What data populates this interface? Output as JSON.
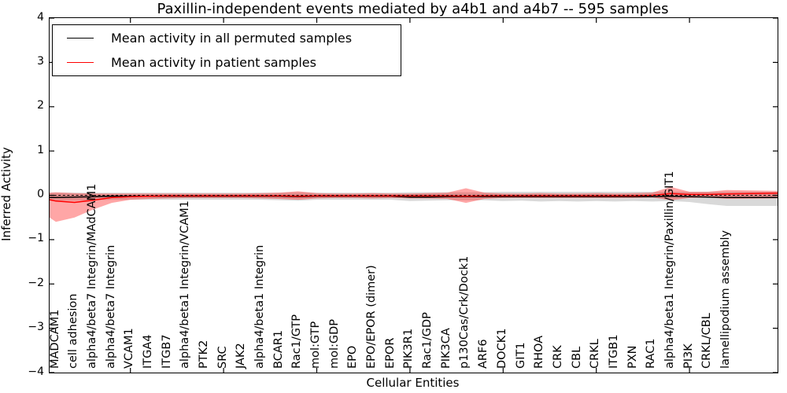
{
  "title": "Paxillin-independent events mediated by a4b1 and a4b7 -- 595 samples",
  "axes": {
    "x_label": "Cellular Entities",
    "y_label": "Inferred Activity",
    "y_tick_values": [
      4,
      3,
      2,
      1,
      0,
      -1,
      -2,
      -3,
      -4
    ],
    "y_tick_labels": [
      "4",
      "3",
      "2",
      "1",
      "0",
      "−1",
      "−2",
      "−3",
      "−4"
    ],
    "ylim": [
      -4,
      4
    ]
  },
  "legend": {
    "entries": [
      {
        "label": "Mean activity in all permuted samples",
        "color": "#000000"
      },
      {
        "label": "Mean activity in patient samples",
        "color": "#ff0000"
      }
    ],
    "position": "upper-left"
  },
  "chart_data": {
    "type": "line",
    "title": "Paxillin-independent events mediated by a4b1 and a4b7 -- 595 samples",
    "xlabel": "Cellular Entities",
    "ylabel": "Inferred Activity",
    "ylim": [
      -4,
      4
    ],
    "grid": false,
    "categories": [
      "MADCAM1",
      "cell adhesion",
      "alpha4/beta7 Integrin/MAdCAM1",
      "alpha4/beta7 Integrin",
      "VCAM1",
      "ITGA4",
      "ITGB7",
      "alpha4/beta1 Integrin/VCAM1",
      "PTK2",
      "SRC",
      "JAK2",
      "alpha4/beta1 Integrin",
      "BCAR1",
      "Rac1/GTP",
      "mol:GTP",
      "mol:GDP",
      "EPO",
      "EPO/EPOR (dimer)",
      "EPOR",
      "PIK3R1",
      "Rac1/GDP",
      "PIK3CA",
      "p130Cas/Crk/Dock1",
      "ARF6",
      "DOCK1",
      "GIT1",
      "RHOA",
      "CRK",
      "CBL",
      "CRKL",
      "ITGB1",
      "PXN",
      "RAC1",
      "alpha4/beta1 Integrin/Paxillin/GIT1",
      "PI3K",
      "CRKL/CBL",
      "lamellipodium assembly"
    ],
    "x_ticks_shown": [
      5,
      10,
      15,
      20,
      25,
      30,
      35
    ],
    "series": [
      {
        "name": "mean-permuted",
        "label": "Mean activity in all permuted samples",
        "color": "#000000",
        "left_edge": -0.05,
        "right_edge": -0.05,
        "values": [
          -0.05,
          -0.04,
          -0.03,
          -0.02,
          -0.02,
          -0.02,
          -0.02,
          -0.02,
          -0.02,
          -0.02,
          -0.02,
          -0.02,
          -0.02,
          -0.03,
          -0.02,
          -0.02,
          -0.02,
          -0.02,
          -0.02,
          -0.04,
          -0.04,
          -0.03,
          -0.03,
          -0.03,
          -0.03,
          -0.03,
          -0.03,
          -0.03,
          -0.03,
          -0.03,
          -0.03,
          -0.03,
          -0.03,
          -0.02,
          -0.03,
          -0.04,
          -0.05
        ]
      },
      {
        "name": "mean-patient",
        "label": "Mean activity in patient samples",
        "color": "#ff0000",
        "left_edge": -0.1,
        "right_edge": 0.05,
        "values": [
          -0.13,
          -0.16,
          -0.11,
          -0.05,
          -0.03,
          -0.02,
          -0.01,
          -0.01,
          -0.01,
          -0.01,
          -0.01,
          -0.01,
          -0.01,
          -0.02,
          -0.01,
          -0.01,
          -0.01,
          -0.01,
          -0.01,
          -0.01,
          -0.01,
          -0.01,
          -0.02,
          -0.01,
          -0.01,
          -0.01,
          -0.01,
          -0.01,
          -0.01,
          -0.01,
          -0.01,
          -0.01,
          0.0,
          0.04,
          0.02,
          0.02,
          0.03
        ]
      }
    ],
    "bands": [
      {
        "name": "permuted-std",
        "fill": "rgba(120,120,120,0.28)",
        "left_edge_upper": 0.06,
        "left_edge_lower": -0.12,
        "right_edge_upper": 0.08,
        "right_edge_lower": -0.24,
        "upper": [
          0.06,
          0.06,
          0.06,
          0.06,
          0.06,
          0.06,
          0.06,
          0.06,
          0.06,
          0.06,
          0.06,
          0.06,
          0.06,
          0.07,
          0.06,
          0.06,
          0.06,
          0.06,
          0.06,
          0.07,
          0.07,
          0.07,
          0.07,
          0.07,
          0.08,
          0.08,
          0.08,
          0.08,
          0.08,
          0.08,
          0.08,
          0.08,
          0.08,
          0.08,
          0.08,
          0.08,
          0.08
        ],
        "lower": [
          -0.12,
          -0.12,
          -0.11,
          -0.1,
          -0.1,
          -0.1,
          -0.1,
          -0.1,
          -0.1,
          -0.1,
          -0.1,
          -0.1,
          -0.11,
          -0.12,
          -0.1,
          -0.1,
          -0.1,
          -0.1,
          -0.1,
          -0.13,
          -0.12,
          -0.11,
          -0.11,
          -0.11,
          -0.13,
          -0.12,
          -0.14,
          -0.13,
          -0.14,
          -0.13,
          -0.14,
          -0.13,
          -0.14,
          -0.13,
          -0.15,
          -0.2,
          -0.24
        ]
      },
      {
        "name": "patient-std",
        "fill": "rgba(255,0,0,0.35)",
        "left_edge_upper": 0.06,
        "left_edge_lower": -0.5,
        "right_edge_upper": 0.1,
        "right_edge_lower": -0.07,
        "upper": [
          0.07,
          0.05,
          0.04,
          0.04,
          0.04,
          0.04,
          0.04,
          0.04,
          0.04,
          0.04,
          0.04,
          0.05,
          0.06,
          0.09,
          0.05,
          0.04,
          0.04,
          0.05,
          0.04,
          0.04,
          0.05,
          0.06,
          0.16,
          0.06,
          0.04,
          0.04,
          0.05,
          0.04,
          0.04,
          0.05,
          0.04,
          0.05,
          0.06,
          0.19,
          0.08,
          0.08,
          0.12
        ],
        "lower": [
          -0.6,
          -0.5,
          -0.32,
          -0.17,
          -0.1,
          -0.08,
          -0.07,
          -0.06,
          -0.06,
          -0.06,
          -0.06,
          -0.07,
          -0.08,
          -0.1,
          -0.07,
          -0.06,
          -0.06,
          -0.07,
          -0.06,
          -0.07,
          -0.07,
          -0.08,
          -0.17,
          -0.08,
          -0.06,
          -0.06,
          -0.06,
          -0.06,
          -0.06,
          -0.06,
          -0.06,
          -0.06,
          -0.05,
          -0.11,
          -0.06,
          -0.05,
          -0.08
        ]
      }
    ],
    "zero_line": {
      "style": "dashed",
      "color": "#000000",
      "y": 0
    }
  }
}
